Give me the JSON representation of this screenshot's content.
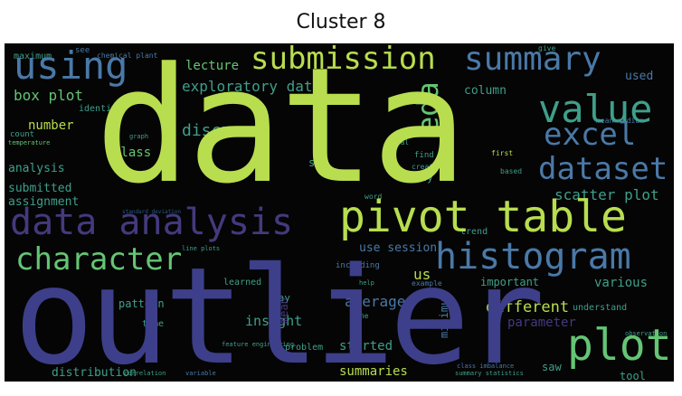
{
  "title": "Cluster 8",
  "colors": {
    "background": "#050505",
    "lime": "#b8dd4f",
    "green": "#64c574",
    "teal": "#3f9f8a",
    "blue": "#4a79a8",
    "purple": "#3d3f8a",
    "violet": "#433a7d",
    "dark": "#2a2b4a"
  },
  "words": {
    "data": "data",
    "outlier": "outlier",
    "pivot_table": "pivot table",
    "data_analysis": "data analysis",
    "summary": "summary",
    "submission": "submission",
    "using": "using",
    "value": "value",
    "excel": "excel",
    "eda": "eda",
    "dataset": "dataset",
    "histogram": "histogram",
    "character": "character",
    "plot": "plot",
    "exploratory_data": "exploratory data",
    "box_plot": "box plot",
    "discussed": "discussed",
    "scatter_plot": "scatter plot",
    "analysis": "analysis",
    "submitted": "submitted",
    "assignment": "assignment",
    "class": "class",
    "number": "number",
    "column": "column",
    "used": "used",
    "lecture": "lecture",
    "identify": "identify",
    "maximum": "maximum",
    "chemical_plant": "chemical plant",
    "sir": "sir",
    "today": "today",
    "use_session": "use session",
    "us": "us",
    "average": "average",
    "insight": "insight",
    "different": "different",
    "parameter": "parameter",
    "minimum": "minimum",
    "started": "started",
    "distribution": "distribution",
    "summaries": "summaries",
    "saw": "saw",
    "tool": "tool",
    "various": "various",
    "trend": "trend",
    "including": "including",
    "learned": "learned",
    "pattern": "pattern",
    "important": "important",
    "mean_median": "mean median",
    "word": "word",
    "see": "see",
    "count": "count",
    "temperature": "temperature",
    "find": "find",
    "first": "first",
    "total": "total",
    "create": "create",
    "help": "help",
    "example": "example",
    "problem": "problem",
    "time": "time",
    "one": "one",
    "understand": "understand",
    "day": "day",
    "feature_engineering": "feature engineering",
    "summary_statistics": "summary statistics",
    "class_imbalance": "class imbalance",
    "standard_deviation": "standard deviation",
    "line_plots": "line plots",
    "correlation": "correlation",
    "variable": "variable",
    "observation": "observation",
    "based": "based",
    "graph": "graph",
    "give": "give",
    "mean": "mean"
  }
}
